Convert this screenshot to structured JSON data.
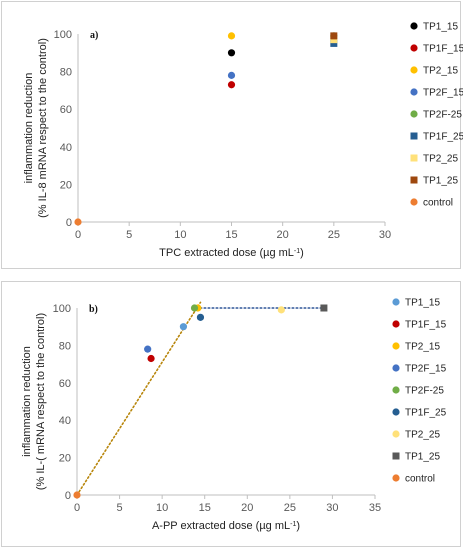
{
  "chart_data": [
    {
      "type": "scatter",
      "panel_label": "a)",
      "ylabel_line1": "inflammation reduction",
      "ylabel_line2": "(% IL-8 mRNA respect to the control)",
      "xlabel": "TPC extracted dose (µg mL",
      "xlabel_sup": "-1",
      "xlabel_end": ")",
      "xlim": [
        0,
        30
      ],
      "ylim": [
        0,
        100
      ],
      "xticks": [
        "0",
        "5",
        "10",
        "15",
        "20",
        "25",
        "30"
      ],
      "yticks": [
        "0",
        "20",
        "40",
        "60",
        "80",
        "100"
      ],
      "series": [
        {
          "name": "TP1_15",
          "color": "#000000",
          "marker": "circle",
          "x": 15,
          "y": 90
        },
        {
          "name": "TP1F_15",
          "color": "#c00000",
          "marker": "circle",
          "x": 15,
          "y": 73
        },
        {
          "name": "TP2_15",
          "color": "#ffc000",
          "marker": "circle",
          "x": 15,
          "y": 99
        },
        {
          "name": "TP2F_15",
          "color": "#4472c4",
          "marker": "circle",
          "x": 15,
          "y": 78
        },
        {
          "name": "TP2F-25",
          "color": "#70ad47",
          "marker": "circle",
          "x": 25,
          "y": 99
        },
        {
          "name": "TP1F_25",
          "color": "#255e91",
          "marker": "square",
          "x": 25,
          "y": 95
        },
        {
          "name": "TP2_25",
          "color": "#ffe17a",
          "marker": "square",
          "x": 25,
          "y": 97
        },
        {
          "name": "TP1_25",
          "color": "#9e480e",
          "marker": "square",
          "x": 25,
          "y": 99
        },
        {
          "name": "control",
          "color": "#ed7d31",
          "marker": "circle",
          "x": 0,
          "y": 0
        }
      ]
    },
    {
      "type": "scatter",
      "panel_label": "b)",
      "ylabel_line1": "inflammation reduction",
      "ylabel_line2": "(% IL-( mRNA respect to the control)",
      "xlabel": "A-PP extracted dose (µg mL",
      "xlabel_sup": "-1",
      "xlabel_end": ")",
      "xlim": [
        0,
        35
      ],
      "ylim": [
        0,
        100
      ],
      "xticks": [
        "0",
        "5",
        "10",
        "15",
        "20",
        "25",
        "30",
        "35"
      ],
      "yticks": [
        "0",
        "20",
        "40",
        "60",
        "80",
        "100"
      ],
      "series": [
        {
          "name": "TP1_15",
          "color": "#5b9bd5",
          "marker": "circle",
          "x": 12.5,
          "y": 90
        },
        {
          "name": "TP1F_15",
          "color": "#c00000",
          "marker": "circle",
          "x": 8.7,
          "y": 73
        },
        {
          "name": "TP2_15",
          "color": "#ffc000",
          "marker": "circle",
          "x": 14.2,
          "y": 100
        },
        {
          "name": "TP2F_15",
          "color": "#4472c4",
          "marker": "circle",
          "x": 8.3,
          "y": 78
        },
        {
          "name": "TP2F-25",
          "color": "#70ad47",
          "marker": "circle",
          "x": 13.8,
          "y": 100
        },
        {
          "name": "TP1F_25",
          "color": "#255e91",
          "marker": "circle",
          "x": 14.5,
          "y": 95
        },
        {
          "name": "TP2_25",
          "color": "#ffe17a",
          "marker": "circle",
          "x": 24,
          "y": 99
        },
        {
          "name": "TP1_25",
          "color": "#595959",
          "marker": "square",
          "x": 29,
          "y": 100
        },
        {
          "name": "control",
          "color": "#ed7d31",
          "marker": "circle",
          "x": 0,
          "y": 0
        }
      ],
      "trendlines": [
        {
          "color": "#b8860b",
          "style": "dotted",
          "from": [
            0,
            0
          ],
          "to": [
            14.5,
            103
          ]
        },
        {
          "color": "#2e5597",
          "style": "dotted",
          "from": [
            14,
            100
          ],
          "to": [
            29,
            100
          ]
        }
      ]
    }
  ]
}
